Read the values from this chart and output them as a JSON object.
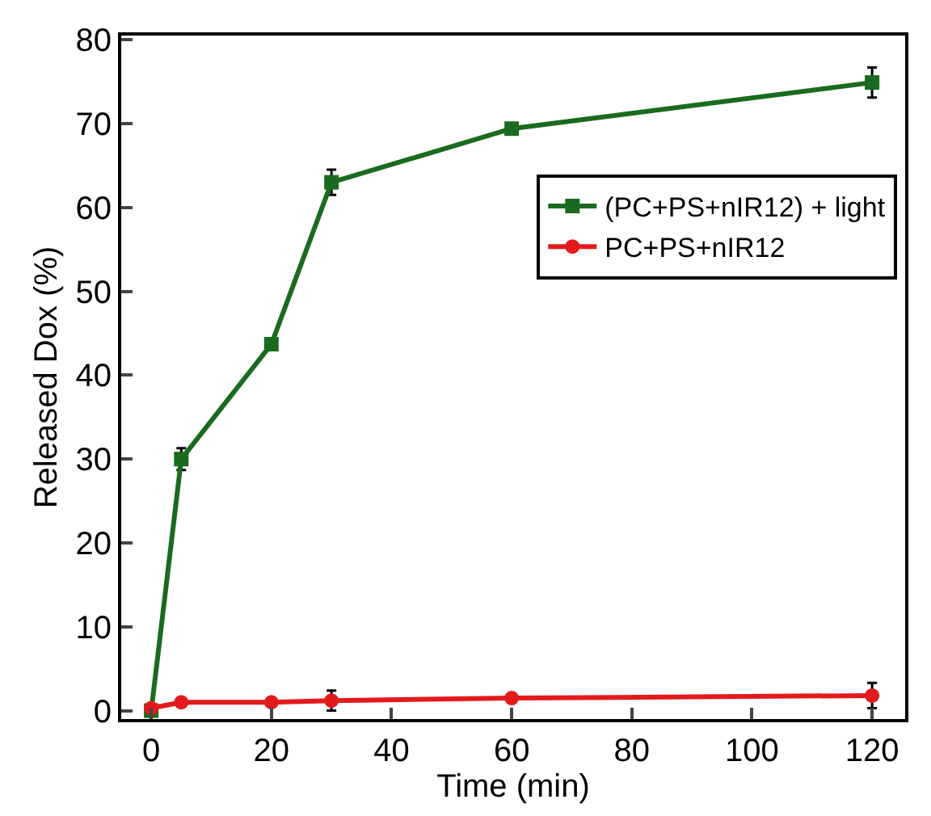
{
  "chart_data": {
    "type": "line",
    "xlabel": "Time (min)",
    "ylabel": "Released Dox (%)",
    "x": [
      0,
      5,
      20,
      30,
      60,
      120
    ],
    "xlim": [
      -5,
      125.5
    ],
    "xticks": [
      0,
      20,
      40,
      60,
      80,
      100,
      120
    ],
    "ylim": [
      -1,
      80.5
    ],
    "yticks": [
      0,
      10,
      20,
      30,
      40,
      50,
      60,
      70,
      80
    ],
    "legend": "right",
    "line_style": "solid",
    "series": [
      {
        "name": "(PC+PS+nIR12) + light",
        "color": "#1a6b1f",
        "marker": "square",
        "values": [
          0,
          30.0,
          43.7,
          63.0,
          69.4,
          74.9
        ],
        "errors": [
          null,
          1.3,
          null,
          1.5,
          null,
          1.8
        ]
      },
      {
        "name": "PC+PS+nIR12",
        "color": "#e31a1c",
        "marker": "circle",
        "values": [
          0.3,
          1.0,
          1.0,
          1.2,
          1.5,
          1.8
        ],
        "errors": [
          null,
          null,
          null,
          1.2,
          null,
          1.5
        ]
      }
    ]
  }
}
